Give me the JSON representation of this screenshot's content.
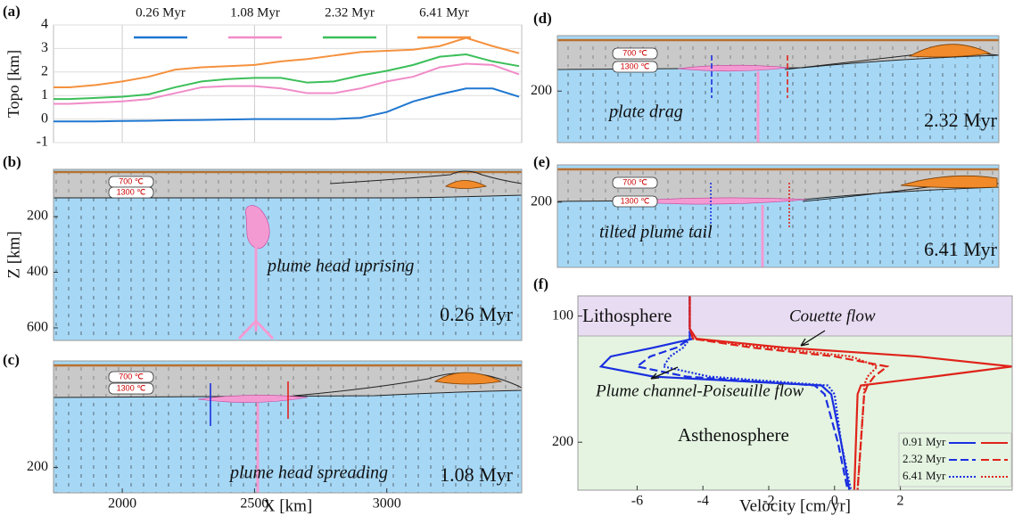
{
  "chart_data": [
    {
      "type": "line",
      "label": "(a)",
      "ylabel": "Topo [km]",
      "x": [
        1740,
        1800,
        1900,
        2000,
        2100,
        2200,
        2300,
        2400,
        2500,
        2600,
        2700,
        2800,
        2900,
        3000,
        3100,
        3200,
        3300,
        3400,
        3500
      ],
      "series": [
        {
          "name": "0.26 Myr",
          "color": "#1f77d0",
          "values": [
            -0.1,
            -0.1,
            -0.1,
            -0.08,
            -0.07,
            -0.05,
            -0.04,
            -0.02,
            0,
            0,
            0,
            0,
            0.05,
            0.3,
            0.75,
            1.05,
            1.3,
            1.3,
            0.95
          ]
        },
        {
          "name": "1.08 Myr",
          "color": "#f08cc8",
          "values": [
            0.65,
            0.65,
            0.7,
            0.75,
            0.85,
            1.1,
            1.35,
            1.4,
            1.4,
            1.3,
            1.1,
            1.1,
            1.3,
            1.6,
            1.8,
            2.2,
            2.35,
            2.3,
            1.9
          ]
        },
        {
          "name": "2.32 Myr",
          "color": "#3cbf5a",
          "values": [
            0.85,
            0.85,
            0.9,
            0.95,
            1.05,
            1.35,
            1.6,
            1.7,
            1.75,
            1.75,
            1.55,
            1.6,
            1.85,
            2.05,
            2.3,
            2.65,
            2.75,
            2.45,
            2.25
          ]
        },
        {
          "name": "6.41 Myr",
          "color": "#f5913e",
          "values": [
            1.35,
            1.35,
            1.45,
            1.6,
            1.8,
            2.1,
            2.2,
            2.25,
            2.3,
            2.45,
            2.55,
            2.7,
            2.85,
            2.9,
            2.95,
            3.1,
            3.45,
            3.1,
            2.8
          ]
        }
      ],
      "xlim": [
        1740,
        3510
      ],
      "xticks": [
        2000,
        2500,
        3000
      ],
      "ylim": [
        -1,
        4
      ],
      "yticks": [
        -1,
        0,
        1,
        2,
        3,
        4
      ],
      "grid": true
    },
    {
      "type": "section",
      "label": "(b)",
      "ylabel": "Z [km]",
      "isotherms": [
        "700 ℃",
        "1300 ℃"
      ],
      "annotation": "plume head uprising",
      "time": "0.26 Myr",
      "ylim": [
        30,
        645
      ],
      "invert_y": true,
      "yticks": [
        200,
        400,
        600
      ]
    },
    {
      "type": "section",
      "label": "(c)",
      "xlabel": "X [km]",
      "isotherms": [
        "700 ℃",
        "1300 ℃"
      ],
      "annotation": "plume head spreading",
      "time": "1.08 Myr",
      "xlim": [
        1740,
        3510
      ],
      "xticks": [
        2000,
        2500,
        3000
      ],
      "ylim": [
        -10,
        250
      ],
      "invert_y": true,
      "yticks": [
        200
      ]
    },
    {
      "type": "section",
      "label": "(d)",
      "isotherms": [
        "700 ℃",
        "1300 ℃"
      ],
      "annotation": "plate drag",
      "time": "2.32 Myr",
      "ylim": [
        60,
        330
      ],
      "invert_y": true,
      "yticks": [
        200
      ]
    },
    {
      "type": "section",
      "label": "(e)",
      "isotherms": [
        "700 ℃",
        "1300 ℃"
      ],
      "annotation": "tilted plume tail",
      "time": "6.41 Myr",
      "ylim": [
        120,
        340
      ],
      "invert_y": true,
      "yticks": [
        200
      ]
    },
    {
      "type": "profile",
      "label": "(f)",
      "xlabel": "Velocity [cm/yr]",
      "regions": [
        "Lithosphere",
        "Asthenosphere"
      ],
      "annotations": [
        "Couette flow",
        "Plume channel-Poiseuille flow"
      ],
      "depth": [
        84,
        110,
        118,
        125,
        132,
        140,
        148,
        155,
        162,
        200,
        238
      ],
      "series": [
        {
          "name": "0.91 Myr",
          "style": "solid",
          "profiles": [
            {
              "color": "#1a2fe0",
              "values": [
                -4.4,
                -4.4,
                -4.3,
                -5.5,
                -6.8,
                -7.1,
                -5.5,
                -0.4,
                -0.1,
                0.2,
                0.45
              ]
            },
            {
              "color": "#e0231a",
              "values": [
                -4.4,
                -4.4,
                -4.2,
                -1.5,
                2.5,
                5.4,
                3,
                0.8,
                0.7,
                0.65,
                0.6
              ]
            }
          ]
        },
        {
          "name": "2.32 Myr",
          "style": "dashed",
          "profiles": [
            {
              "color": "#1a2fe0",
              "values": [
                -4.4,
                -4.4,
                -4.4,
                -4.8,
                -5.6,
                -6,
                -4.5,
                -0.6,
                -0.3,
                0.1,
                0.4
              ]
            },
            {
              "color": "#e0231a",
              "values": [
                -4.4,
                -4.4,
                -4.3,
                -2.5,
                0,
                1.6,
                1.2,
                1,
                0.9,
                0.8,
                0.7
              ]
            }
          ]
        },
        {
          "name": "6.41 Myr",
          "style": "dotted",
          "profiles": [
            {
              "color": "#1a2fe0",
              "values": [
                -4.4,
                -4.4,
                -4.4,
                -4.6,
                -5,
                -5.2,
                -3.8,
                -0.2,
                0,
                0.2,
                0.5
              ]
            },
            {
              "color": "#e0231a",
              "values": [
                -4.4,
                -4.4,
                -4.3,
                -2,
                0.5,
                1.3,
                1,
                0.9,
                0.9,
                0.8,
                0.7
              ]
            }
          ]
        }
      ],
      "xlim": [
        -7.8,
        5.4
      ],
      "xticks": [
        -6,
        -4,
        -2,
        0,
        2
      ],
      "ylim": [
        84,
        238
      ],
      "invert_y": true,
      "yticks": [
        100,
        200
      ]
    }
  ]
}
